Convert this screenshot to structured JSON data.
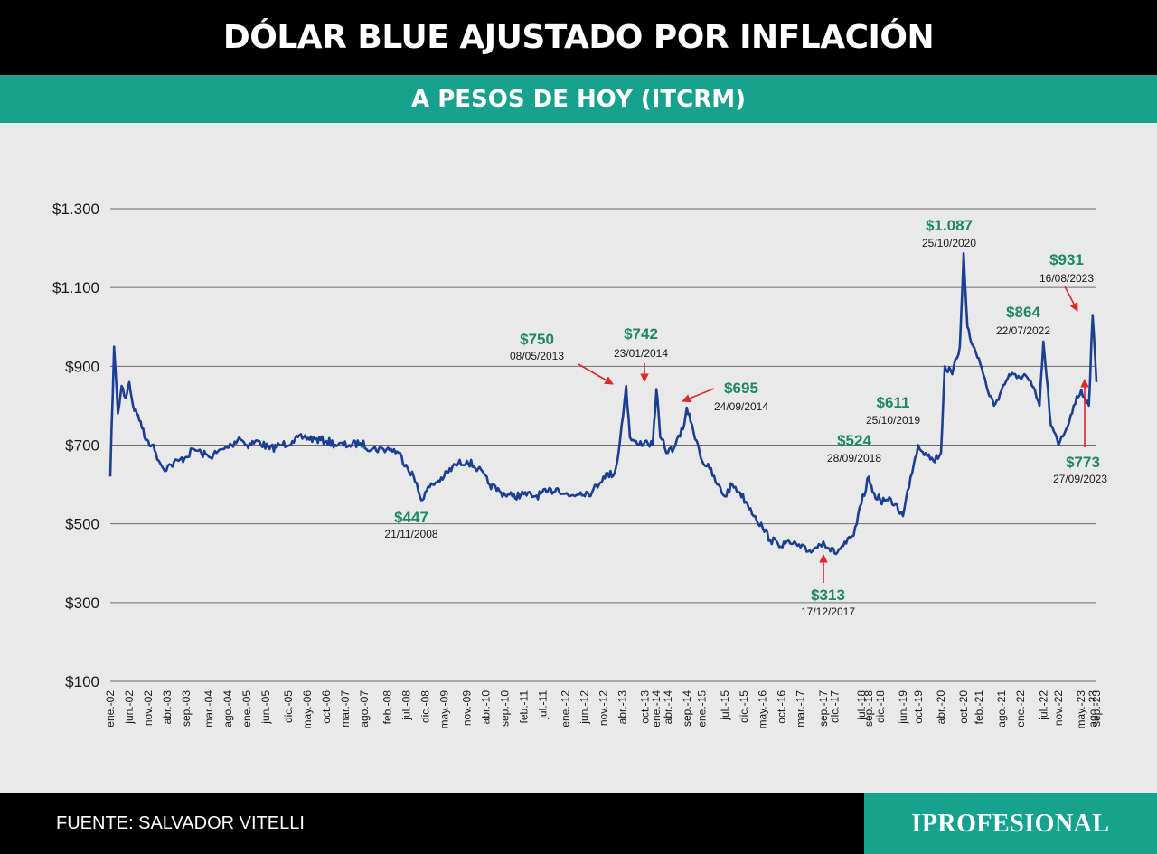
{
  "header": {
    "title": "DÓLAR BLUE AJUSTADO POR INFLACIÓN",
    "subtitle": "A PESOS DE HOY (ITCRM)"
  },
  "footer": {
    "source": "FUENTE: SALVADOR VITELLI",
    "brand": "IPROFESIONAL"
  },
  "colors": {
    "line": "#1c3f94",
    "annotation_value": "#1b8a63",
    "arrow": "#e3262b",
    "header_bg": "#000000",
    "subtitle_bg": "#16a28c"
  },
  "chart_data": {
    "type": "line",
    "title": "DÓLAR BLUE AJUSTADO POR INFLACIÓN",
    "subtitle": "A PESOS DE HOY (ITCRM)",
    "xlabel": "",
    "ylabel": "",
    "ylim": [
      100,
      1300
    ],
    "xlim": [
      "2002-01",
      "2023-09"
    ],
    "grid": "horizontal",
    "yticks": [
      {
        "value": 100,
        "label": "$100"
      },
      {
        "value": 300,
        "label": "$300"
      },
      {
        "value": 500,
        "label": "$500"
      },
      {
        "value": 700,
        "label": "$700"
      },
      {
        "value": 900,
        "label": "$900"
      },
      {
        "value": 1100,
        "label": "$1.100"
      },
      {
        "value": 1300,
        "label": "$1.300"
      }
    ],
    "xticks": [
      {
        "date": "2002-01",
        "label": "ene.-02"
      },
      {
        "date": "2002-06",
        "label": "jun.-02"
      },
      {
        "date": "2002-11",
        "label": "nov.-02"
      },
      {
        "date": "2003-04",
        "label": "abr.-03"
      },
      {
        "date": "2003-09",
        "label": "sep.-03"
      },
      {
        "date": "2004-03",
        "label": "mar.-04"
      },
      {
        "date": "2004-08",
        "label": "ago.-04"
      },
      {
        "date": "2005-01",
        "label": "ene.-05"
      },
      {
        "date": "2005-06",
        "label": "jun.-05"
      },
      {
        "date": "2005-12",
        "label": "dic.-05"
      },
      {
        "date": "2006-05",
        "label": "may.-06"
      },
      {
        "date": "2006-10",
        "label": "oct.-06"
      },
      {
        "date": "2007-03",
        "label": "mar.-07"
      },
      {
        "date": "2007-08",
        "label": "ago.-07"
      },
      {
        "date": "2008-02",
        "label": "feb.-08"
      },
      {
        "date": "2008-07",
        "label": "jul.-08"
      },
      {
        "date": "2008-12",
        "label": "dic.-08"
      },
      {
        "date": "2009-05",
        "label": "may.-09"
      },
      {
        "date": "2009-11",
        "label": "nov.-09"
      },
      {
        "date": "2010-04",
        "label": "abr.-10"
      },
      {
        "date": "2010-09",
        "label": "sep.-10"
      },
      {
        "date": "2011-02",
        "label": "feb.-11"
      },
      {
        "date": "2011-07",
        "label": "jul.-11"
      },
      {
        "date": "2012-01",
        "label": "ene.-12"
      },
      {
        "date": "2012-06",
        "label": "jun.-12"
      },
      {
        "date": "2012-11",
        "label": "nov.-12"
      },
      {
        "date": "2013-04",
        "label": "abr.-13"
      },
      {
        "date": "2013-10",
        "label": "oct.-13"
      },
      {
        "date": "2014-01",
        "label": "ene.-14"
      },
      {
        "date": "2014-04",
        "label": "abr.-14"
      },
      {
        "date": "2014-09",
        "label": "sep.-14"
      },
      {
        "date": "2015-01",
        "label": "ene.-15"
      },
      {
        "date": "2015-07",
        "label": "jul.-15"
      },
      {
        "date": "2015-12",
        "label": "dic.-15"
      },
      {
        "date": "2016-05",
        "label": "may.-16"
      },
      {
        "date": "2016-10",
        "label": "oct.-16"
      },
      {
        "date": "2017-03",
        "label": "mar.-17"
      },
      {
        "date": "2017-09",
        "label": "sep.-17"
      },
      {
        "date": "2017-12",
        "label": "dic.-17"
      },
      {
        "date": "2018-07",
        "label": "jul.-18"
      },
      {
        "date": "2018-09",
        "label": "sep.-18"
      },
      {
        "date": "2018-12",
        "label": "dic.-18"
      },
      {
        "date": "2019-06",
        "label": "jun.-19"
      },
      {
        "date": "2019-10",
        "label": "oct.-19"
      },
      {
        "date": "2020-04",
        "label": "abr.-20"
      },
      {
        "date": "2020-10",
        "label": "oct.-20"
      },
      {
        "date": "2021-02",
        "label": "feb.-21"
      },
      {
        "date": "2021-08",
        "label": "ago.-21"
      },
      {
        "date": "2022-01",
        "label": "ene.-22"
      },
      {
        "date": "2022-07",
        "label": "jul.-22"
      },
      {
        "date": "2022-11",
        "label": "nov.-22"
      },
      {
        "date": "2023-05",
        "label": "may.-23"
      },
      {
        "date": "2023-08",
        "label": "ago.-23"
      },
      {
        "date": "2023-09",
        "label": "sep.-23"
      }
    ],
    "series": [
      {
        "values": [
          [
            "2002-01",
            620
          ],
          [
            "2002-02",
            950
          ],
          [
            "2002-03",
            780
          ],
          [
            "2002-04",
            850
          ],
          [
            "2002-05",
            820
          ],
          [
            "2002-06",
            860
          ],
          [
            "2002-07",
            800
          ],
          [
            "2002-08",
            780
          ],
          [
            "2002-09",
            760
          ],
          [
            "2002-10",
            720
          ],
          [
            "2002-11",
            710
          ],
          [
            "2002-12",
            700
          ],
          [
            "2003-01",
            680
          ],
          [
            "2003-03",
            640
          ],
          [
            "2003-05",
            650
          ],
          [
            "2003-07",
            660
          ],
          [
            "2003-09",
            670
          ],
          [
            "2003-11",
            690
          ],
          [
            "2004-01",
            680
          ],
          [
            "2004-03",
            670
          ],
          [
            "2004-05",
            680
          ],
          [
            "2004-07",
            690
          ],
          [
            "2004-09",
            700
          ],
          [
            "2004-11",
            720
          ],
          [
            "2005-01",
            700
          ],
          [
            "2005-04",
            710
          ],
          [
            "2005-07",
            690
          ],
          [
            "2005-10",
            700
          ],
          [
            "2006-01",
            710
          ],
          [
            "2006-04",
            720
          ],
          [
            "2006-07",
            715
          ],
          [
            "2006-10",
            710
          ],
          [
            "2007-01",
            700
          ],
          [
            "2007-04",
            700
          ],
          [
            "2007-07",
            705
          ],
          [
            "2007-10",
            690
          ],
          [
            "2008-01",
            690
          ],
          [
            "2008-03",
            690
          ],
          [
            "2008-05",
            680
          ],
          [
            "2008-07",
            650
          ],
          [
            "2008-09",
            620
          ],
          [
            "2008-11",
            560
          ],
          [
            "2008-12",
            580
          ],
          [
            "2009-02",
            600
          ],
          [
            "2009-05",
            620
          ],
          [
            "2009-08",
            650
          ],
          [
            "2009-11",
            660
          ],
          [
            "2010-02",
            640
          ],
          [
            "2010-05",
            600
          ],
          [
            "2010-08",
            580
          ],
          [
            "2010-11",
            570
          ],
          [
            "2011-02",
            575
          ],
          [
            "2011-05",
            570
          ],
          [
            "2011-08",
            580
          ],
          [
            "2011-11",
            590
          ],
          [
            "2012-02",
            570
          ],
          [
            "2012-05",
            580
          ],
          [
            "2012-08",
            580
          ],
          [
            "2012-11",
            620
          ],
          [
            "2013-02",
            630
          ],
          [
            "2013-03",
            680
          ],
          [
            "2013-05",
            850
          ],
          [
            "2013-06",
            720
          ],
          [
            "2013-08",
            700
          ],
          [
            "2013-10",
            710
          ],
          [
            "2013-12",
            700
          ],
          [
            "2014-01",
            842
          ],
          [
            "2014-02",
            720
          ],
          [
            "2014-04",
            680
          ],
          [
            "2014-06",
            700
          ],
          [
            "2014-08",
            740
          ],
          [
            "2014-09",
            795
          ],
          [
            "2014-10",
            760
          ],
          [
            "2014-12",
            700
          ],
          [
            "2015-01",
            660
          ],
          [
            "2015-03",
            640
          ],
          [
            "2015-05",
            600
          ],
          [
            "2015-07",
            570
          ],
          [
            "2015-09",
            600
          ],
          [
            "2015-11",
            580
          ],
          [
            "2016-01",
            550
          ],
          [
            "2016-03",
            520
          ],
          [
            "2016-05",
            490
          ],
          [
            "2016-07",
            460
          ],
          [
            "2016-09",
            450
          ],
          [
            "2016-11",
            450
          ],
          [
            "2017-01",
            450
          ],
          [
            "2017-03",
            440
          ],
          [
            "2017-05",
            430
          ],
          [
            "2017-07",
            440
          ],
          [
            "2017-09",
            455
          ],
          [
            "2017-12",
            425
          ],
          [
            "2018-03",
            450
          ],
          [
            "2018-05",
            470
          ],
          [
            "2018-07",
            550
          ],
          [
            "2018-09",
            620
          ],
          [
            "2018-10",
            580
          ],
          [
            "2018-12",
            560
          ],
          [
            "2019-02",
            560
          ],
          [
            "2019-04",
            550
          ],
          [
            "2019-06",
            520
          ],
          [
            "2019-08",
            620
          ],
          [
            "2019-10",
            700
          ],
          [
            "2019-12",
            680
          ],
          [
            "2020-02",
            660
          ],
          [
            "2020-04",
            680
          ],
          [
            "2020-05",
            900
          ],
          [
            "2020-07",
            880
          ],
          [
            "2020-09",
            950
          ],
          [
            "2020-10",
            1187
          ],
          [
            "2020-11",
            1000
          ],
          [
            "2020-12",
            960
          ],
          [
            "2021-02",
            920
          ],
          [
            "2021-04",
            850
          ],
          [
            "2021-06",
            800
          ],
          [
            "2021-08",
            840
          ],
          [
            "2021-10",
            880
          ],
          [
            "2021-12",
            870
          ],
          [
            "2022-02",
            880
          ],
          [
            "2022-04",
            850
          ],
          [
            "2022-06",
            800
          ],
          [
            "2022-07",
            963
          ],
          [
            "2022-09",
            750
          ],
          [
            "2022-11",
            700
          ],
          [
            "2023-01",
            740
          ],
          [
            "2023-03",
            800
          ],
          [
            "2023-05",
            840
          ],
          [
            "2023-07",
            800
          ],
          [
            "2023-08",
            1028
          ],
          [
            "2023-09",
            860
          ]
        ]
      }
    ],
    "annotations": [
      {
        "label": "$447",
        "date_label": "21/11/2008"
      },
      {
        "label": "$750",
        "date_label": "08/05/2013"
      },
      {
        "label": "$742",
        "date_label": "23/01/2014"
      },
      {
        "label": "$695",
        "date_label": "24/09/2014"
      },
      {
        "label": "$313",
        "date_label": "17/12/2017"
      },
      {
        "label": "$524",
        "date_label": "28/09/2018"
      },
      {
        "label": "$611",
        "date_label": "25/10/2019"
      },
      {
        "label": "$1.087",
        "date_label": "25/10/2020"
      },
      {
        "label": "$864",
        "date_label": "22/07/2022"
      },
      {
        "label": "$931",
        "date_label": "16/08/2023"
      },
      {
        "label": "$773",
        "date_label": "27/09/2023"
      }
    ]
  }
}
